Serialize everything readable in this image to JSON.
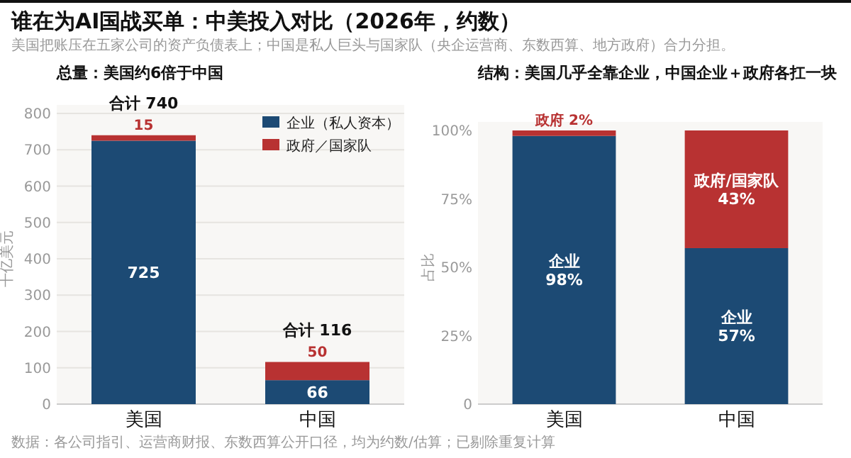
{
  "chart_data": [
    {
      "type": "bar",
      "stacked": true,
      "title": "总量：美国约6倍于中国",
      "annotations": [
        "谁在为AI国战买单：中美投入对比（2026年，约数）",
        "美国把账压在五家公司的资产负债表上；中国是私人巨头与国家队（央企运营商、东数西算、地方政府）合力分担。",
        "数据：各公司指引、运营商财报、东数西算公开口径，均为约数/估算；已剔除重复计算"
      ],
      "ylabel": "十亿美元",
      "categories": [
        "美国",
        "中国"
      ],
      "series": [
        {
          "name": "企业（私人资本）",
          "color": "#1c4a74",
          "values": [
            725,
            66
          ]
        },
        {
          "name": "政府／国家队",
          "color": "#b83232",
          "values": [
            15,
            50
          ]
        }
      ],
      "data_labels": true,
      "totals": [
        "合计 740",
        "合计 116"
      ],
      "ylim": [
        0,
        800
      ],
      "yticks": [
        0,
        100,
        200,
        300,
        400,
        500,
        600,
        700,
        800
      ],
      "grid": "y",
      "legend": "top right"
    },
    {
      "type": "bar",
      "stacked": true,
      "title": "结构：美国几乎全靠企业，中国企业＋政府各扛一块",
      "ylabel": "占比",
      "categories": [
        "美国",
        "中国"
      ],
      "series": [
        {
          "color": "#1c4a74",
          "values": [
            98,
            57
          ],
          "value_labels": [
            "企业\n98%",
            "企业\n57%"
          ]
        },
        {
          "color": "#b83232",
          "values": [
            2,
            43
          ],
          "value_labels": [
            "政府 2%",
            "政府/国家队\n43%"
          ]
        }
      ],
      "ylim": [
        0,
        100
      ],
      "yticks": [
        {
          "value": 0,
          "label": "0"
        },
        {
          "value": 25,
          "label": "25%"
        },
        {
          "value": 50,
          "label": "50%"
        },
        {
          "value": 75,
          "label": "75%"
        },
        {
          "value": 100,
          "label": "100%"
        }
      ]
    }
  ]
}
